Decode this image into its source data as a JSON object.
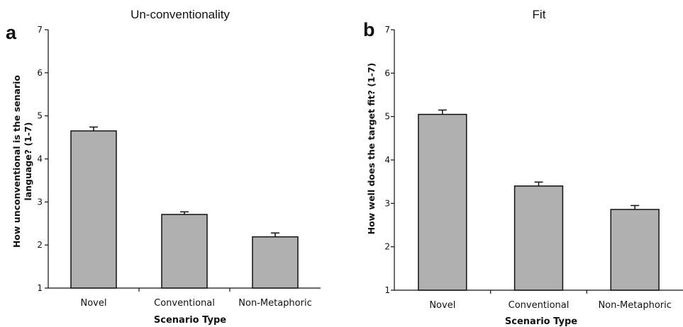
{
  "style": {
    "bar_color": "#b0b0b0",
    "axis_color": "#111111"
  },
  "chart_data": [
    {
      "type": "bar",
      "panel": "a",
      "title": "Un-conventionality",
      "xlabel": "Scenario Type",
      "ylabel_lines": [
        "How unconventional is the senario",
        "language? (1-7)"
      ],
      "categories": [
        "Novel",
        "Conventional",
        "Non-Metaphoric"
      ],
      "values": [
        4.65,
        2.71,
        2.19
      ],
      "errors": [
        0.09,
        0.06,
        0.09
      ],
      "ylim": [
        1,
        7
      ],
      "yticks": [
        "1",
        "2",
        "3",
        "4",
        "5",
        "6",
        "7"
      ],
      "grid": false,
      "legend": "none"
    },
    {
      "type": "bar",
      "panel": "b",
      "title": "Fit",
      "xlabel": "Scenario Type",
      "ylabel_lines": [
        "How well does the target fit? (1-7)"
      ],
      "categories": [
        "Novel",
        "Conventional",
        "Non-Metaphoric"
      ],
      "values": [
        5.05,
        3.4,
        2.86
      ],
      "errors": [
        0.1,
        0.09,
        0.09
      ],
      "ylim": [
        1,
        7
      ],
      "yticks": [
        "1",
        "2",
        "3",
        "4",
        "5",
        "6",
        "7"
      ],
      "grid": false,
      "legend": "none"
    }
  ]
}
